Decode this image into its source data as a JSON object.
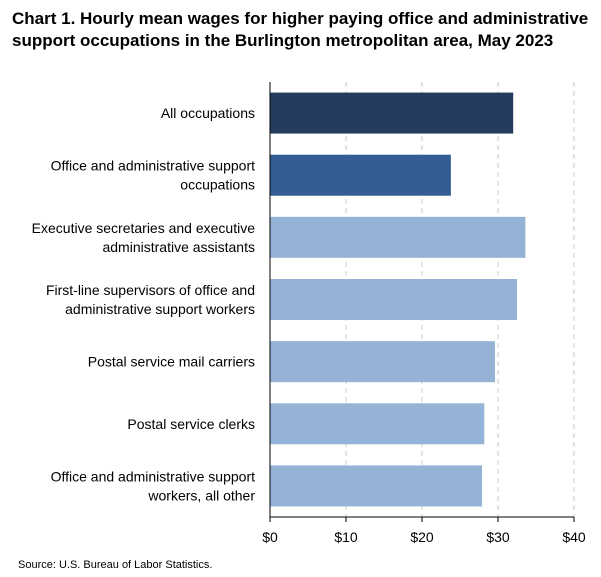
{
  "title": "Chart 1. Hourly mean wages for higher paying office and administrative support occupations in the Burlington metropolitan area, May 2023",
  "source": "Source: U.S. Bureau of Labor Statistics.",
  "chart_data": {
    "type": "bar",
    "orientation": "horizontal",
    "title": "Chart 1. Hourly mean wages for higher paying office and administrative support occupations in the Burlington metropolitan area, May 2023",
    "categories": [
      "All occupations",
      "Office and administrative support occupations",
      "Executive secretaries and executive administrative assistants",
      "First-line supervisors of office and administrative support workers",
      "Postal service mail carriers",
      "Postal service clerks",
      "Office and administrative support workers, all other"
    ],
    "category_lines": [
      [
        "All occupations"
      ],
      [
        "Office and administrative support",
        "occupations"
      ],
      [
        "Executive secretaries and executive",
        "administrative assistants"
      ],
      [
        "First-line supervisors of office and",
        "administrative support workers"
      ],
      [
        "Postal service mail carriers"
      ],
      [
        "Postal service clerks"
      ],
      [
        "Office and administrative support",
        "workers, all other"
      ]
    ],
    "values": [
      32.0,
      23.8,
      33.6,
      32.5,
      29.6,
      28.2,
      27.9
    ],
    "colors": [
      "#243d5e",
      "#345e93",
      "#95b3d7",
      "#95b3d7",
      "#95b3d7",
      "#95b3d7",
      "#95b3d7"
    ],
    "xlim": [
      0,
      40
    ],
    "xticks": [
      0,
      10,
      20,
      30,
      40
    ],
    "xtick_labels": [
      "$0",
      "$10",
      "$20",
      "$30",
      "$40"
    ],
    "grid": true,
    "grid_style": "dashed vertical",
    "axis_color": "#000000",
    "grid_color": "#c8c8c8"
  }
}
